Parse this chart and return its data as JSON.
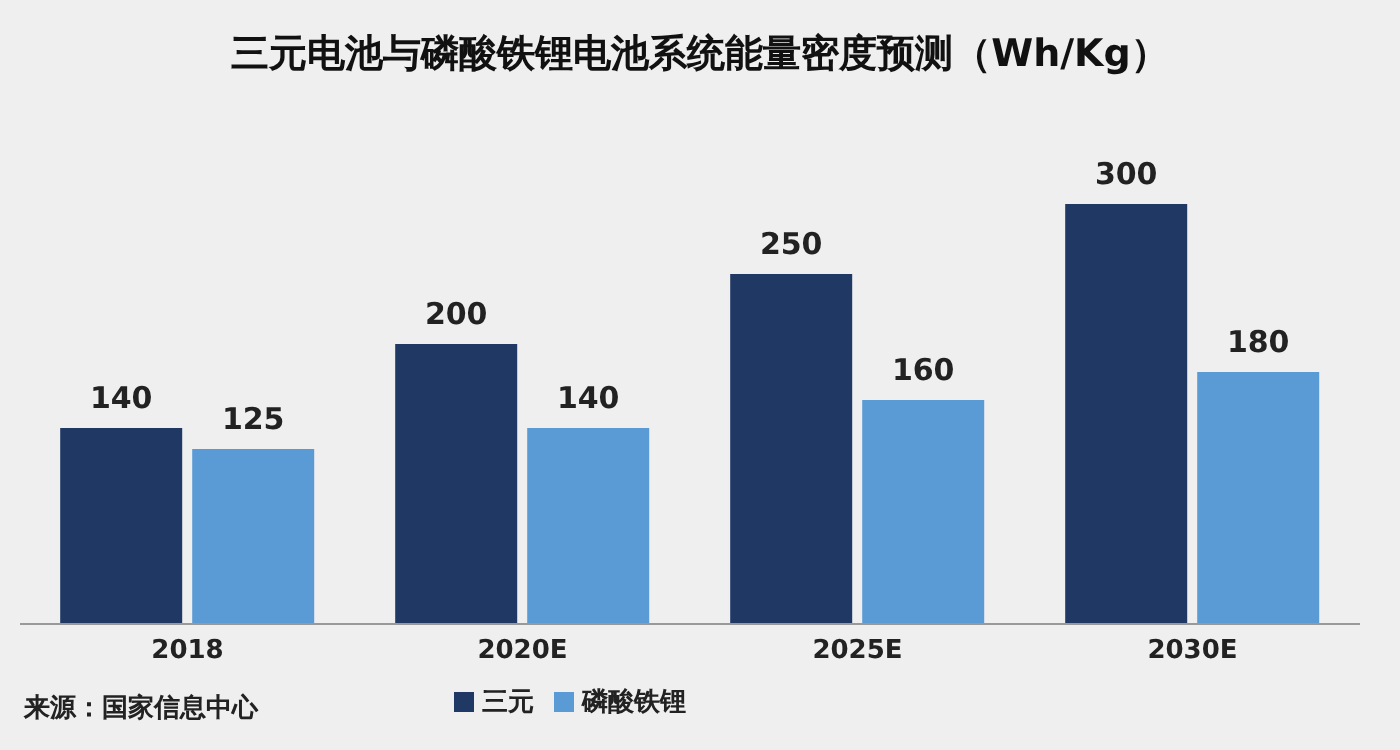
{
  "chart_data": {
    "type": "bar",
    "title": "三元电池与磷酸铁锂电池系统能量密度预测（Wh/Kg）",
    "categories": [
      "2018",
      "2020E",
      "2025E",
      "2030E"
    ],
    "series": [
      {
        "name": "三元",
        "color": "#1f3864",
        "values": [
          140,
          200,
          250,
          300
        ]
      },
      {
        "name": "磷酸铁锂",
        "color": "#5b9bd5",
        "values": [
          125,
          140,
          160,
          180
        ]
      }
    ],
    "data_labels": true,
    "legend": "bottom",
    "tick_labels": "x",
    "annotations": [
      "来源：国家信息中心"
    ]
  }
}
